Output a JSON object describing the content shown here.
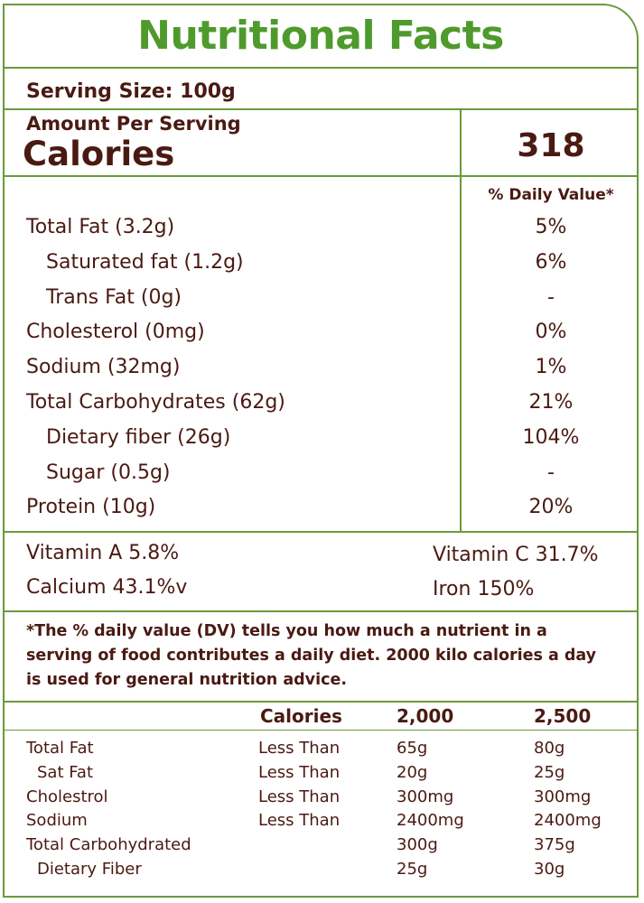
{
  "title": "Nutritional Facts",
  "serving_size": "Serving Size: 100g",
  "amount_per_serving": "Amount Per Serving",
  "calories_label": "Calories",
  "calories_value": "318",
  "daily_value_header": "% Daily Value*",
  "nutrients": [
    {
      "name": "Total Fat (3.2g)",
      "dv": "5%",
      "indent": false
    },
    {
      "name": "Saturated fat (1.2g)",
      "dv": "6%",
      "indent": true
    },
    {
      "name": "Trans Fat (0g)",
      "dv": "-",
      "indent": true
    },
    {
      "name": "Cholesterol (0mg)",
      "dv": "0%",
      "indent": false
    },
    {
      "name": "Sodium (32mg)",
      "dv": "1%",
      "indent": false
    },
    {
      "name": "Total Carbohydrates  (62g)",
      "dv": "21%",
      "indent": false
    },
    {
      "name": "Dietary fiber (26g)",
      "dv": "104%",
      "indent": true
    },
    {
      "name": "Sugar (0.5g)",
      "dv": "-",
      "indent": true
    },
    {
      "name": "Protein (10g)",
      "dv": "20%",
      "indent": false
    }
  ],
  "vitamins": {
    "vitamin_a": "Vitamin A 5.8%",
    "vitamin_c": "Vitamin C 31.7%",
    "calcium": "Calcium 43.1%v",
    "iron": "Iron 150%"
  },
  "footnote": "*The % daily value (DV) tells you how much a nutrient in a serving of food contributes a daily diet. 2000 kilo calories a day is used for general nutrition advice.",
  "reference": {
    "headers": [
      "Calories",
      "2,000",
      "2,500"
    ],
    "rows": [
      {
        "name": "Total Fat",
        "qualifier": "Less Than",
        "v2000": "65g",
        "v2500": "80g",
        "indent": false
      },
      {
        "name": "Sat Fat",
        "qualifier": "Less Than",
        "v2000": "20g",
        "v2500": "25g",
        "indent": true
      },
      {
        "name": "Cholestrol",
        "qualifier": "Less Than",
        "v2000": "300mg",
        "v2500": "300mg",
        "indent": false
      },
      {
        "name": "Sodium",
        "qualifier": "Less Than",
        "v2000": "2400mg",
        "v2500": "2400mg",
        "indent": false
      },
      {
        "name": "Total Carbohydrated",
        "qualifier": "",
        "v2000": "300g",
        "v2500": "375g",
        "indent": false
      },
      {
        "name": "Dietary Fiber",
        "qualifier": "",
        "v2000": "25g",
        "v2500": "30g",
        "indent": true
      }
    ]
  },
  "colors": {
    "title_green": "#4f9a2c",
    "border_green": "#6a9a3a",
    "text_brown": "#4a1a12"
  }
}
